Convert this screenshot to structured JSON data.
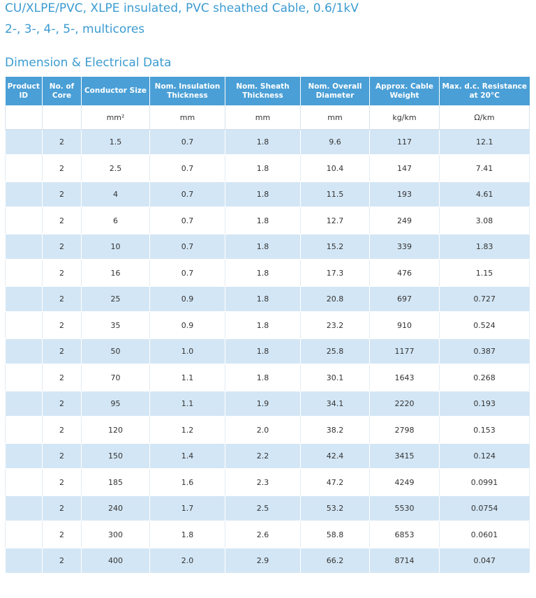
{
  "header": {
    "title_line1": "CU/XLPE/PVC, XLPE insulated, PVC sheathed Cable, 0.6/1kV",
    "title_line2": "2-, 3-, 4-, 5-, multicores"
  },
  "section_title": "Dimension & Electrical Data",
  "table": {
    "columns": [
      {
        "label": "Product ID",
        "unit": ""
      },
      {
        "label": "No. of Core",
        "unit": ""
      },
      {
        "label": "Conductor Size",
        "unit": "mm²"
      },
      {
        "label": "Nom. Insulation Thickness",
        "unit": "mm"
      },
      {
        "label": "Nom. Sheath Thickness",
        "unit": "mm"
      },
      {
        "label": "Nom. Overall Diameter",
        "unit": "mm"
      },
      {
        "label": "Approx. Cable Weight",
        "unit": "kg/km"
      },
      {
        "label": "Max. d.c. Resistance at 20°C",
        "unit": "Ω/km"
      }
    ],
    "rows": [
      [
        "",
        "2",
        "1.5",
        "0.7",
        "1.8",
        "9.6",
        "117",
        "12.1"
      ],
      [
        "",
        "2",
        "2.5",
        "0.7",
        "1.8",
        "10.4",
        "147",
        "7.41"
      ],
      [
        "",
        "2",
        "4",
        "0.7",
        "1.8",
        "11.5",
        "193",
        "4.61"
      ],
      [
        "",
        "2",
        "6",
        "0.7",
        "1.8",
        "12.7",
        "249",
        "3.08"
      ],
      [
        "",
        "2",
        "10",
        "0.7",
        "1.8",
        "15.2",
        "339",
        "1.83"
      ],
      [
        "",
        "2",
        "16",
        "0.7",
        "1.8",
        "17.3",
        "476",
        "1.15"
      ],
      [
        "",
        "2",
        "25",
        "0.9",
        "1.8",
        "20.8",
        "697",
        "0.727"
      ],
      [
        "",
        "2",
        "35",
        "0.9",
        "1.8",
        "23.2",
        "910",
        "0.524"
      ],
      [
        "",
        "2",
        "50",
        "1.0",
        "1.8",
        "25.8",
        "1177",
        "0.387"
      ],
      [
        "",
        "2",
        "70",
        "1.1",
        "1.8",
        "30.1",
        "1643",
        "0.268"
      ],
      [
        "",
        "2",
        "95",
        "1.1",
        "1.9",
        "34.1",
        "2220",
        "0.193"
      ],
      [
        "",
        "2",
        "120",
        "1.2",
        "2.0",
        "38.2",
        "2798",
        "0.153"
      ],
      [
        "",
        "2",
        "150",
        "1.4",
        "2.2",
        "42.4",
        "3415",
        "0.124"
      ],
      [
        "",
        "2",
        "185",
        "1.6",
        "2.3",
        "47.2",
        "4249",
        "0.0991"
      ],
      [
        "",
        "2",
        "240",
        "1.7",
        "2.5",
        "53.2",
        "5530",
        "0.0754"
      ],
      [
        "",
        "2",
        "300",
        "1.8",
        "2.6",
        "58.8",
        "6853",
        "0.0601"
      ],
      [
        "",
        "2",
        "400",
        "2.0",
        "2.9",
        "66.2",
        "8714",
        "0.047"
      ]
    ]
  }
}
